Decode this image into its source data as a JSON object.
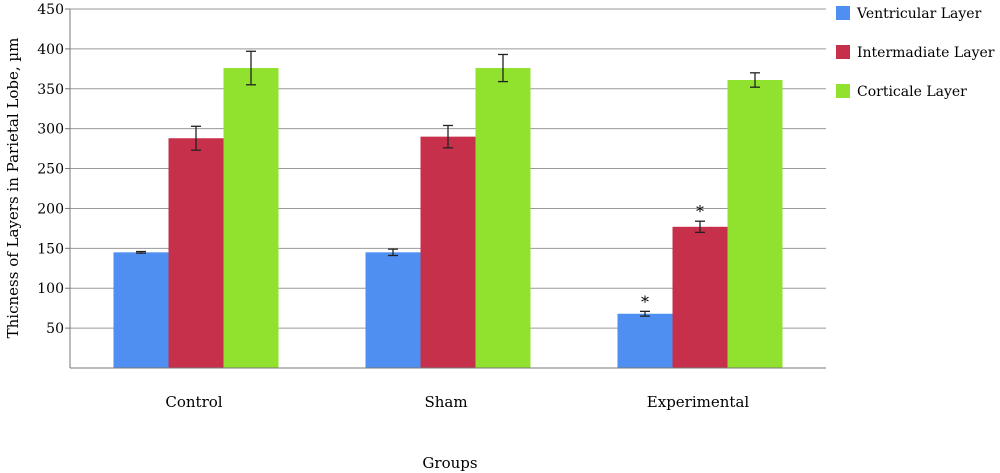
{
  "chart_data": {
    "type": "bar",
    "categories": [
      "Control",
      "Sham",
      "Experimental"
    ],
    "series": [
      {
        "name": "Ventricular Layer",
        "color": "#4f8ff2",
        "values": [
          145,
          145,
          68
        ],
        "errors": [
          1,
          4,
          3
        ]
      },
      {
        "name": "Intermadiate Layer",
        "color": "#c7304a",
        "values": [
          288,
          290,
          177
        ],
        "errors": [
          15,
          14,
          7
        ]
      },
      {
        "name": "Corticale Layer",
        "color": "#90e22f",
        "values": [
          376,
          376,
          361
        ],
        "errors": [
          21,
          17,
          9
        ]
      }
    ],
    "annotations": [
      {
        "text": "*",
        "series": 0,
        "category": 2
      },
      {
        "text": "*",
        "series": 1,
        "category": 2
      }
    ],
    "xlabel": "Groups",
    "ylabel": "Thicness of Layers in Parietal Lobe, µm",
    "ylim": [
      0,
      450
    ],
    "yticks": [
      "50",
      "100",
      "150",
      "200",
      "250",
      "300",
      "350",
      "400",
      "450"
    ],
    "grid": true,
    "legend_position": "right"
  }
}
